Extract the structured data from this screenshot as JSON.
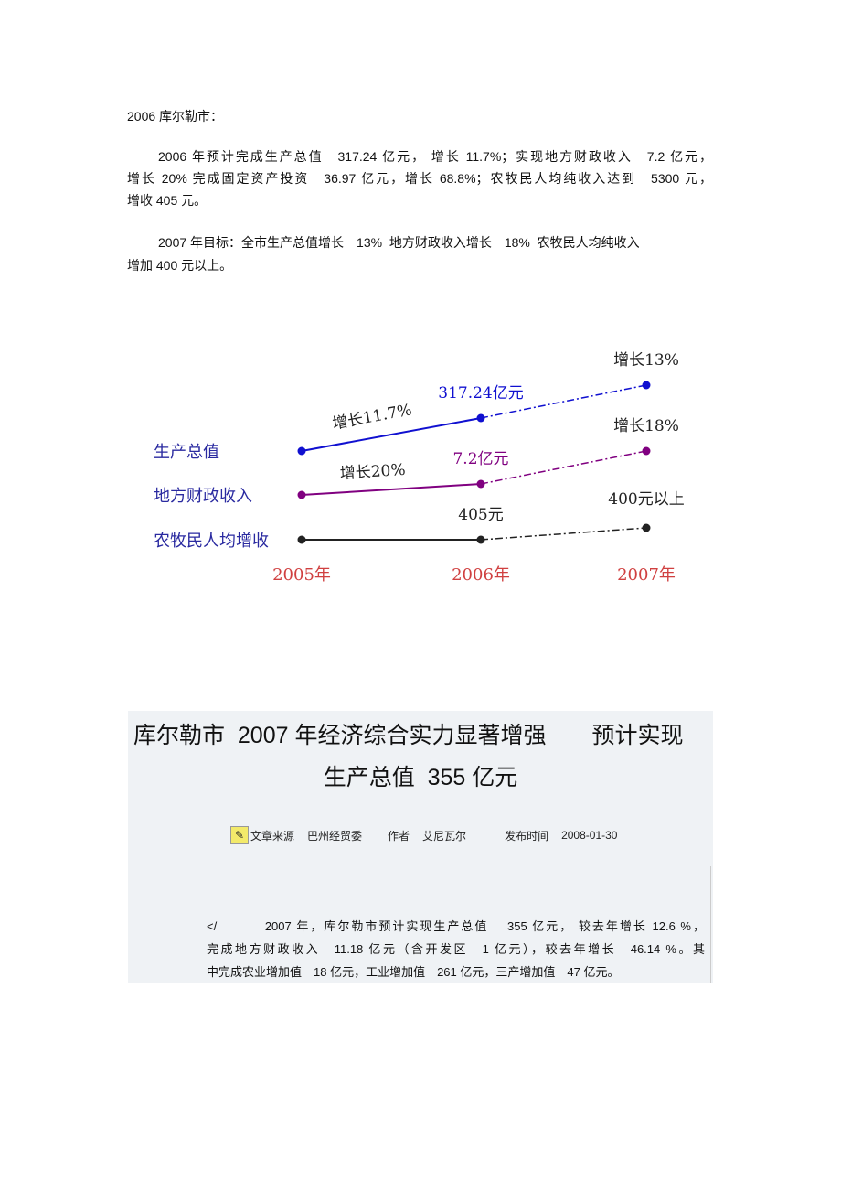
{
  "intro": {
    "heading": "2006 库尔勒市：",
    "para1_lines": [
      "2006 年预计完成生产总值　317.24 亿元， 增长 11.7%；实现地方财政收入　7.2 亿元，",
      "增长 20% 完成固定资产投资　36.97 亿元，增长 68.8%；农牧民人均纯收入达到　5300 元，",
      "增收 405 元。"
    ],
    "para2_lines": [
      "2007 年目标：全市生产总值增长　13%  地方财政收入增长　18%  农牧民人均纯收入",
      "增加 400 元以上。"
    ]
  },
  "chart_data": {
    "type": "line",
    "categories": [
      "2005年",
      "2006年",
      "2007年"
    ],
    "series": [
      {
        "name": "生产总值",
        "color": "#1010d0",
        "labels": [
          "",
          "317.24亿元",
          "增长13%"
        ],
        "segment_labels": [
          "增长11.7%",
          ""
        ]
      },
      {
        "name": "地方财政收入",
        "color": "#800080",
        "labels": [
          "",
          "7.2亿元",
          "增长18%"
        ],
        "segment_labels": [
          "增长20%",
          ""
        ]
      },
      {
        "name": "农牧民人均增收",
        "color": "#222222",
        "labels": [
          "",
          "405元",
          "400元以上"
        ],
        "segment_labels": [
          "",
          ""
        ]
      }
    ],
    "series_label_color": "#2a2aa0",
    "category_color": "#d04040",
    "line_styles": [
      "solid",
      "dash-dot"
    ]
  },
  "article": {
    "title_line1": "库尔勒市  2007 年经济综合实力显著增强　　预计实现",
    "title_line2": "生产总值  355 亿元",
    "meta": {
      "icon": "document-link-icon",
      "source_label": "文章来源",
      "source": "巴州经贸委",
      "author_label": "作者",
      "author": "艾尼瓦尔",
      "date_label": "发布时间",
      "date": "2008-01-30"
    },
    "body_lines": [
      "</　　　 2007 年，库尔勒市预计实现生产总值　 355 亿元， 较去年增长  12.6 %，",
      "完成地方财政收入　11.18 亿元（含开发区　1 亿元），较去年增长　46.14 %。其",
      "中完成农业增加值　18 亿元，工业增加值　261 亿元，三产增加值　47 亿元。"
    ]
  }
}
